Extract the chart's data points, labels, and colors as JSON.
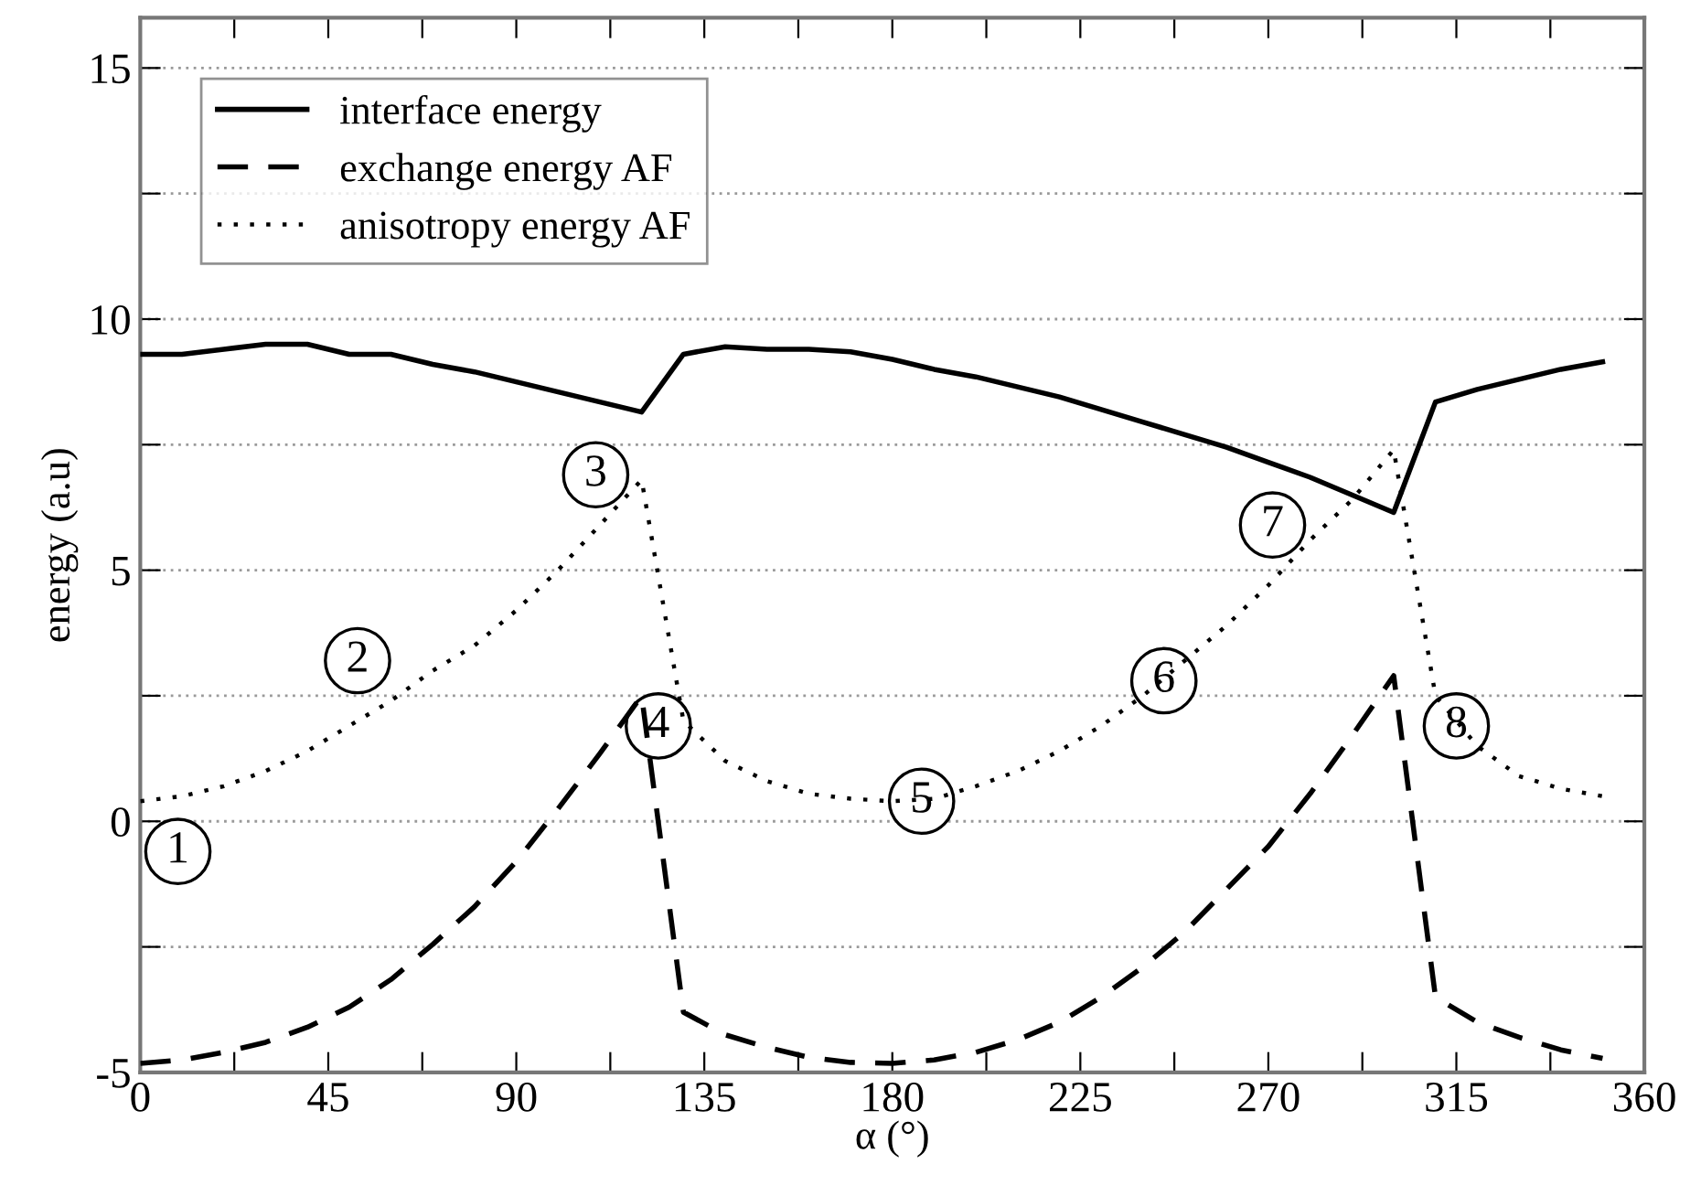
{
  "chart_data": {
    "type": "line",
    "xlabel": "α (°)",
    "ylabel": "energy (a.u)",
    "x": [
      0,
      10,
      20,
      30,
      40,
      50,
      60,
      70,
      80,
      90,
      100,
      110,
      120,
      130,
      140,
      150,
      160,
      170,
      180,
      190,
      200,
      210,
      220,
      230,
      240,
      250,
      260,
      270,
      280,
      290,
      300,
      310,
      320,
      330,
      340,
      350
    ],
    "series": [
      {
        "name": "interface energy",
        "color": "#000000",
        "line_style": "solid",
        "values": [
          9.3,
          9.3,
          9.4,
          9.5,
          9.5,
          9.3,
          9.3,
          9.1,
          8.95,
          8.75,
          8.55,
          8.35,
          8.15,
          9.3,
          9.45,
          9.4,
          9.4,
          9.35,
          9.2,
          9.0,
          8.85,
          8.65,
          8.45,
          8.2,
          7.95,
          7.7,
          7.45,
          7.15,
          6.85,
          6.5,
          6.15,
          8.35,
          8.6,
          8.8,
          9.0,
          9.15
        ]
      },
      {
        "name": "exchange energy AF",
        "color": "#000000",
        "line_style": "dashed",
        "values": [
          -4.82,
          -4.75,
          -4.6,
          -4.4,
          -4.1,
          -3.7,
          -3.15,
          -2.45,
          -1.7,
          -0.8,
          0.25,
          1.35,
          2.5,
          -3.8,
          -4.25,
          -4.5,
          -4.7,
          -4.8,
          -4.82,
          -4.75,
          -4.6,
          -4.35,
          -4.0,
          -3.5,
          -2.9,
          -2.2,
          -1.35,
          -0.5,
          0.55,
          1.7,
          2.9,
          -3.5,
          -4.0,
          -4.3,
          -4.55,
          -4.72
        ]
      },
      {
        "name": "anisotropy energy AF",
        "color": "#000000",
        "line_style": "dotted",
        "values": [
          0.4,
          0.5,
          0.7,
          1.0,
          1.4,
          1.9,
          2.4,
          3.0,
          3.5,
          4.2,
          5.0,
          5.9,
          6.8,
          2.0,
          1.2,
          0.8,
          0.55,
          0.45,
          0.4,
          0.45,
          0.7,
          1.0,
          1.4,
          1.9,
          2.5,
          3.2,
          3.9,
          4.7,
          5.6,
          6.4,
          7.4,
          2.5,
          1.5,
          0.9,
          0.65,
          0.5
        ]
      }
    ],
    "xlim": [
      0,
      360
    ],
    "xticks": [
      0,
      {
        "value": 22.5,
        "label": null
      },
      45,
      {
        "value": 67.5,
        "label": null
      },
      90,
      {
        "value": 112.5,
        "label": null
      },
      135,
      {
        "value": 157.5,
        "label": null
      },
      180,
      {
        "value": 202.5,
        "label": null
      },
      225,
      {
        "value": 247.5,
        "label": null
      },
      270,
      {
        "value": 292.5,
        "label": null
      },
      315,
      {
        "value": 337.5,
        "label": null
      },
      360
    ],
    "ylim": [
      -5,
      16
    ],
    "yticks": [
      -5,
      {
        "value": -2.5,
        "label": null
      },
      0,
      {
        "value": 2.5,
        "label": null
      },
      5,
      {
        "value": 7.5,
        "label": null
      },
      10,
      {
        "value": 12.5,
        "label": null
      },
      15
    ],
    "grid": "y",
    "legend": "top left",
    "marker": "none",
    "annotations": [
      {
        "text": "1",
        "x": 9,
        "y": -0.6
      },
      {
        "text": "2",
        "x": 52,
        "y": 3.2
      },
      {
        "text": "3",
        "x": 109,
        "y": 6.9
      },
      {
        "text": "4",
        "x": 124,
        "y": 1.9
      },
      {
        "text": "5",
        "x": 187,
        "y": 0.4
      },
      {
        "text": "6",
        "x": 245,
        "y": 2.8
      },
      {
        "text": "7",
        "x": 271,
        "y": 5.9
      },
      {
        "text": "8",
        "x": 315,
        "y": 1.9
      }
    ]
  }
}
